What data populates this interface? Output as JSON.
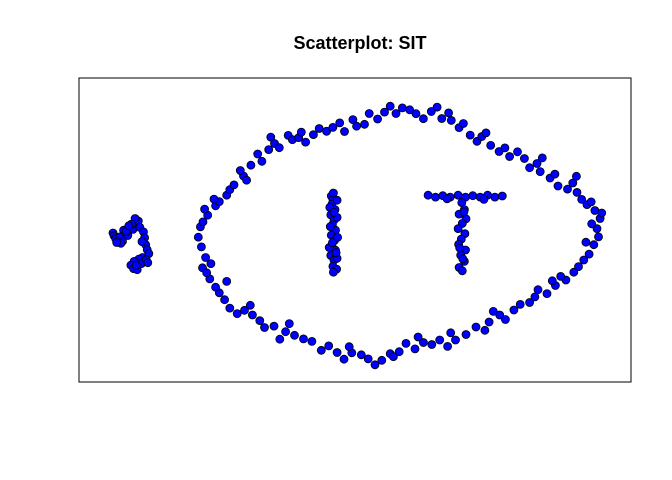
{
  "chart_data": {
    "type": "scatter",
    "title": "Scatterplot: SIT",
    "xlabel": "",
    "ylabel": "",
    "xlim": [
      0,
      100
    ],
    "ylim": [
      0,
      100
    ],
    "axes_visible": false,
    "grid": false,
    "legend": "none",
    "point_fill": "#0000ff",
    "point_stroke": "#000000",
    "series": [
      {
        "values": [
          [
            4.0,
            50.0
          ],
          [
            4.2,
            49.0
          ],
          [
            4.5,
            48.0
          ],
          [
            5.0,
            47.3
          ],
          [
            5.3,
            48.6
          ],
          [
            5.8,
            47.0
          ],
          [
            6.0,
            51.0
          ],
          [
            6.4,
            50.2
          ],
          [
            6.8,
            49.1
          ],
          [
            7.2,
            52.0
          ],
          [
            7.8,
            51.3
          ],
          [
            8.3,
            53.5
          ],
          [
            8.8,
            54.3
          ],
          [
            8.2,
            55.2
          ],
          [
            7.5,
            53.2
          ],
          [
            9.1,
            52.0
          ],
          [
            9.8,
            50.4
          ],
          [
            10.0,
            48.3
          ],
          [
            10.2,
            45.8
          ],
          [
            10.5,
            44.0
          ],
          [
            10.8,
            42.6
          ],
          [
            9.6,
            41.2
          ],
          [
            8.9,
            40.6
          ],
          [
            8.0,
            39.8
          ],
          [
            7.4,
            38.4
          ],
          [
            7.9,
            37.2
          ],
          [
            8.6,
            36.8
          ],
          [
            9.4,
            39.0
          ],
          [
            10.3,
            40.4
          ],
          [
            10.6,
            39.3
          ],
          [
            6.5,
            50.6
          ],
          [
            5.5,
            46.3
          ],
          [
            9.5,
            46.9
          ],
          [
            8.4,
            38.3
          ],
          [
            4.7,
            46.6
          ],
          [
            7.0,
            52.6
          ],
          [
            45.5,
            63.3
          ],
          [
            45.8,
            62.1
          ],
          [
            45.6,
            60.3
          ],
          [
            46.2,
            58.4
          ],
          [
            45.4,
            56.5
          ],
          [
            46.0,
            54.6
          ],
          [
            45.7,
            52.9
          ],
          [
            46.3,
            51.0
          ],
          [
            45.5,
            49.2
          ],
          [
            46.1,
            47.3
          ],
          [
            45.6,
            45.6
          ],
          [
            46.3,
            43.8
          ],
          [
            45.4,
            41.9
          ],
          [
            46.0,
            40.2
          ],
          [
            45.8,
            38.0
          ],
          [
            46.5,
            37.0
          ],
          [
            46.6,
            40.9
          ],
          [
            45.1,
            44.8
          ],
          [
            46.7,
            48.4
          ],
          [
            45.3,
            52.3
          ],
          [
            46.6,
            55.6
          ],
          [
            45.2,
            59.2
          ],
          [
            46.6,
            61.8
          ],
          [
            45.9,
            64.4
          ],
          [
            45.9,
            35.9
          ],
          [
            46.0,
            57.4
          ],
          [
            45.7,
            46.5
          ],
          [
            46.4,
            42.9
          ],
          [
            63.9,
            63.6
          ],
          [
            65.3,
            62.9
          ],
          [
            66.7,
            63.4
          ],
          [
            68.1,
            62.9
          ],
          [
            69.6,
            63.6
          ],
          [
            71.0,
            62.9
          ],
          [
            72.4,
            63.4
          ],
          [
            73.8,
            62.9
          ],
          [
            75.2,
            63.6
          ],
          [
            76.6,
            62.9
          ],
          [
            78.0,
            63.3
          ],
          [
            74.5,
            62.1
          ],
          [
            67.5,
            62.3
          ],
          [
            70.3,
            60.9
          ],
          [
            70.8,
            58.4
          ],
          [
            69.8,
            56.8
          ],
          [
            71.1,
            55.1
          ],
          [
            70.4,
            53.4
          ],
          [
            69.6,
            51.6
          ],
          [
            70.9,
            49.8
          ],
          [
            70.2,
            47.8
          ],
          [
            69.7,
            45.9
          ],
          [
            71.0,
            43.9
          ],
          [
            70.1,
            42.0
          ],
          [
            70.8,
            39.8
          ],
          [
            69.8,
            37.6
          ],
          [
            70.4,
            36.4
          ],
          [
            70.7,
            57.6
          ],
          [
            69.9,
            44.6
          ],
          [
            70.5,
            40.7
          ],
          [
            21.0,
            37.5
          ],
          [
            21.6,
            41.2
          ],
          [
            20.8,
            45.0
          ],
          [
            20.2,
            48.5
          ],
          [
            20.6,
            52.2
          ],
          [
            21.1,
            54.0
          ],
          [
            22.0,
            56.4
          ],
          [
            21.4,
            58.6
          ],
          [
            23.5,
            59.8
          ],
          [
            24.2,
            61.3
          ],
          [
            23.2,
            62.2
          ],
          [
            25.6,
            63.6
          ],
          [
            26.2,
            65.6
          ],
          [
            27.0,
            67.3
          ],
          [
            28.8,
            70.5
          ],
          [
            29.4,
            69.0
          ],
          [
            28.2,
            72.5
          ],
          [
            30.2,
            74.4
          ],
          [
            32.3,
            75.8
          ],
          [
            31.5,
            78.4
          ],
          [
            33.6,
            80.0
          ],
          [
            34.7,
            82.2
          ],
          [
            35.6,
            80.7
          ],
          [
            34.0,
            84.5
          ],
          [
            37.3,
            85.1
          ],
          [
            38.1,
            83.6
          ],
          [
            39.3,
            84.3
          ],
          [
            39.8,
            86.3
          ],
          [
            40.6,
            82.7
          ],
          [
            42.1,
            85.4
          ],
          [
            43.2,
            87.6
          ],
          [
            44.6,
            86.6
          ],
          [
            45.8,
            88.0
          ],
          [
            47.1,
            89.6
          ],
          [
            48.0,
            86.5
          ],
          [
            49.6,
            90.8
          ],
          [
            50.3,
            88.4
          ],
          [
            51.8,
            89.1
          ],
          [
            52.7,
            93.0
          ],
          [
            54.3,
            91.0
          ],
          [
            55.6,
            93.5
          ],
          [
            56.7,
            95.6
          ],
          [
            57.8,
            93.0
          ],
          [
            59.0,
            95.0
          ],
          [
            60.4,
            94.3
          ],
          [
            61.6,
            92.9
          ],
          [
            63.0,
            91.1
          ],
          [
            64.5,
            93.7
          ],
          [
            65.6,
            95.3
          ],
          [
            66.5,
            91.2
          ],
          [
            67.8,
            93.2
          ],
          [
            68.3,
            90.5
          ],
          [
            69.8,
            87.9
          ],
          [
            70.6,
            89.4
          ],
          [
            71.9,
            85.2
          ],
          [
            73.2,
            83.0
          ],
          [
            74.1,
            84.7
          ],
          [
            75.8,
            81.5
          ],
          [
            77.4,
            79.3
          ],
          [
            78.5,
            80.6
          ],
          [
            79.4,
            77.5
          ],
          [
            80.9,
            79.2
          ],
          [
            82.2,
            76.8
          ],
          [
            83.2,
            73.5
          ],
          [
            84.6,
            75.0
          ],
          [
            85.2,
            72.1
          ],
          [
            87.1,
            69.8
          ],
          [
            88.0,
            71.2
          ],
          [
            88.6,
            66.9
          ],
          [
            90.4,
            65.8
          ],
          [
            91.4,
            68.0
          ],
          [
            92.2,
            64.6
          ],
          [
            93.1,
            62.1
          ],
          [
            94.1,
            60.2
          ],
          [
            94.9,
            61.2
          ],
          [
            95.6,
            58.1
          ],
          [
            96.6,
            55.2
          ],
          [
            96.9,
            57.2
          ],
          [
            96.0,
            51.6
          ],
          [
            96.3,
            48.6
          ],
          [
            95.4,
            45.8
          ],
          [
            94.5,
            42.4
          ],
          [
            93.5,
            40.3
          ],
          [
            92.5,
            37.9
          ],
          [
            91.6,
            35.9
          ],
          [
            90.1,
            33.1
          ],
          [
            88.1,
            31.1
          ],
          [
            87.5,
            32.8
          ],
          [
            86.5,
            28.2
          ],
          [
            84.2,
            27.0
          ],
          [
            83.2,
            25.0
          ],
          [
            81.4,
            24.3
          ],
          [
            80.2,
            22.3
          ],
          [
            78.6,
            18.9
          ],
          [
            77.5,
            20.5
          ],
          [
            75.5,
            18.0
          ],
          [
            74.7,
            15.0
          ],
          [
            73.0,
            16.2
          ],
          [
            71.1,
            13.5
          ],
          [
            69.1,
            11.5
          ],
          [
            67.6,
            9.2
          ],
          [
            66.1,
            11.5
          ],
          [
            64.6,
            9.9
          ],
          [
            63.0,
            10.6
          ],
          [
            61.4,
            8.3
          ],
          [
            59.7,
            10.3
          ],
          [
            58.4,
            7.3
          ],
          [
            56.7,
            6.6
          ],
          [
            55.1,
            4.2
          ],
          [
            53.8,
            2.6
          ],
          [
            52.5,
            4.7
          ],
          [
            51.2,
            6.2
          ],
          [
            49.4,
            6.9
          ],
          [
            47.9,
            4.6
          ],
          [
            46.6,
            7.0
          ],
          [
            45.0,
            9.4
          ],
          [
            43.6,
            7.8
          ],
          [
            41.8,
            11.0
          ],
          [
            40.2,
            11.9
          ],
          [
            38.5,
            13.2
          ],
          [
            36.8,
            14.5
          ],
          [
            35.7,
            11.8
          ],
          [
            34.6,
            16.5
          ],
          [
            32.8,
            16.0
          ],
          [
            31.9,
            18.5
          ],
          [
            30.5,
            20.5
          ],
          [
            29.0,
            22.2
          ],
          [
            27.6,
            21.0
          ],
          [
            26.2,
            23.0
          ],
          [
            25.2,
            26.0
          ],
          [
            24.2,
            28.5
          ],
          [
            23.5,
            30.5
          ],
          [
            22.4,
            33.5
          ],
          [
            21.8,
            35.7
          ],
          [
            22.6,
            39.0
          ],
          [
            25.6,
            32.6
          ],
          [
            30.1,
            24.0
          ],
          [
            37.5,
            17.4
          ],
          [
            48.9,
            9.1
          ],
          [
            57.3,
            5.5
          ],
          [
            62.0,
            12.6
          ],
          [
            68.2,
            14.1
          ],
          [
            76.3,
            21.8
          ],
          [
            84.8,
            29.6
          ],
          [
            89.1,
            34.4
          ],
          [
            93.9,
            46.7
          ],
          [
            95.0,
            53.3
          ],
          [
            92.1,
            70.4
          ],
          [
            85.6,
            77.0
          ],
          [
            74.9,
            86.0
          ]
        ]
      }
    ]
  }
}
